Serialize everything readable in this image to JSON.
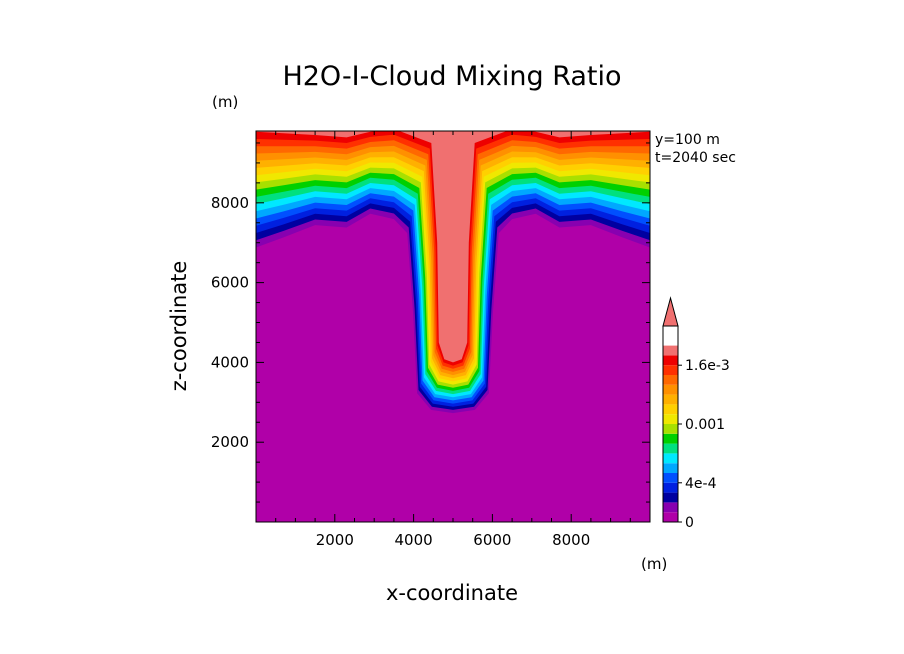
{
  "chart_data": {
    "type": "contour",
    "title": "H2O-I-Cloud Mixing Ratio",
    "xlabel": "x-coordinate",
    "ylabel": "z-coordinate",
    "x_unit": "(m)",
    "y_unit": "(m)",
    "annotations": [
      "y=100 m",
      "t=2040 sec"
    ],
    "xlim": [
      0,
      10000
    ],
    "ylim": [
      0,
      9800
    ],
    "xticks": [
      2000,
      4000,
      6000,
      8000
    ],
    "yticks": [
      2000,
      4000,
      6000,
      8000
    ],
    "xtick_labels": [
      "2000",
      "4000",
      "6000",
      "8000"
    ],
    "ytick_labels": [
      "2000",
      "4000",
      "6000",
      "8000"
    ],
    "colorbar": {
      "levels": [
        0,
        0.0001,
        0.0002,
        0.0003,
        0.0004,
        0.0005,
        0.0006,
        0.0007,
        0.0008,
        0.0009,
        0.001,
        0.0011,
        0.0012,
        0.0013,
        0.0014,
        0.0015,
        0.0016,
        0.0017,
        0.0018,
        0.0019,
        0.002
      ],
      "tick_values": [
        0,
        0.0004,
        0.001,
        0.0016
      ],
      "tick_labels": [
        "0",
        "4e-4",
        "0.001",
        "1.6e-3"
      ],
      "colors": [
        "#b000a8",
        "#8800b0",
        "#0000a0",
        "#0020e0",
        "#0050ff",
        "#00a8ff",
        "#00e8ff",
        "#00e080",
        "#00d000",
        "#a8e000",
        "#f0e800",
        "#ffd000",
        "#ffb000",
        "#ff9000",
        "#ff6800",
        "#ff3000",
        "#ee0000",
        "#f07070"
      ],
      "extend": "max"
    }
  }
}
